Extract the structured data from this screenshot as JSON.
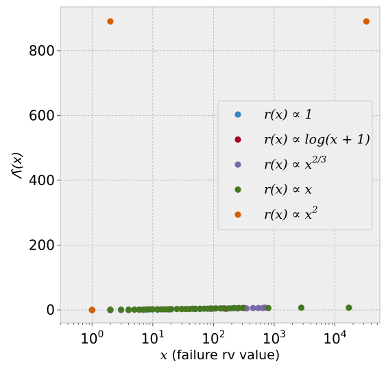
{
  "chart_data": {
    "type": "scatter",
    "title": "",
    "xlabel_math": "x",
    "xlabel_text": " (failure rv value)",
    "ylabel": "Λ̂(x)",
    "x_scale": "log",
    "xlim": [
      0.3,
      55000
    ],
    "ylim": [
      -40,
      935
    ],
    "x_ticks": [
      {
        "value": 1,
        "base": "10",
        "exp": "0"
      },
      {
        "value": 10,
        "base": "10",
        "exp": "1"
      },
      {
        "value": 100,
        "base": "10",
        "exp": "2"
      },
      {
        "value": 1000,
        "base": "10",
        "exp": "3"
      },
      {
        "value": 10000,
        "base": "10",
        "exp": "4"
      }
    ],
    "y_ticks": [
      0,
      200,
      400,
      600,
      800
    ],
    "y_tick_labels": [
      "0",
      "200",
      "400",
      "600",
      "800"
    ],
    "grid": true,
    "background": "#eeeeee",
    "legend_position": "center-right",
    "series": [
      {
        "name": "r(x) ∝ 1",
        "color": "#348abd",
        "points": [
          [
            1,
            0
          ],
          [
            2,
            0
          ],
          [
            3,
            0
          ],
          [
            5,
            1
          ],
          [
            8,
            1
          ],
          [
            12,
            1
          ],
          [
            20,
            2
          ],
          [
            35,
            3
          ],
          [
            60,
            3
          ],
          [
            100,
            4
          ],
          [
            150,
            5
          ],
          [
            200,
            5
          ]
        ]
      },
      {
        "name": "r(x) ∝ log(x + 1)",
        "color": "#a60628",
        "points": [
          [
            1,
            0
          ],
          [
            2,
            0
          ],
          [
            4,
            0
          ],
          [
            7,
            1
          ],
          [
            12,
            2
          ],
          [
            18,
            2
          ],
          [
            30,
            3
          ],
          [
            50,
            3
          ],
          [
            90,
            4
          ],
          [
            160,
            4
          ],
          [
            250,
            5
          ],
          [
            320,
            6
          ]
        ]
      },
      {
        "name": "r(x) ∝ x^{2/3}",
        "color": "#7a68a6",
        "points": [
          [
            1,
            0
          ],
          [
            3,
            0
          ],
          [
            6,
            1
          ],
          [
            12,
            2
          ],
          [
            25,
            3
          ],
          [
            50,
            3
          ],
          [
            100,
            4
          ],
          [
            140,
            5
          ],
          [
            250,
            5
          ],
          [
            350,
            5
          ],
          [
            450,
            6
          ],
          [
            550,
            6
          ],
          [
            650,
            6
          ],
          [
            700,
            7
          ]
        ]
      },
      {
        "name": "r(x) ∝ x",
        "color": "#467821",
        "points": [
          [
            1,
            0
          ],
          [
            2,
            1
          ],
          [
            3,
            1
          ],
          [
            4,
            1
          ],
          [
            5,
            1
          ],
          [
            6,
            1
          ],
          [
            7,
            1
          ],
          [
            8,
            2
          ],
          [
            9,
            2
          ],
          [
            10,
            2
          ],
          [
            12,
            2
          ],
          [
            14,
            2
          ],
          [
            16,
            2
          ],
          [
            18,
            2
          ],
          [
            20,
            3
          ],
          [
            25,
            3
          ],
          [
            30,
            3
          ],
          [
            35,
            3
          ],
          [
            40,
            3
          ],
          [
            45,
            4
          ],
          [
            50,
            4
          ],
          [
            60,
            4
          ],
          [
            70,
            4
          ],
          [
            80,
            4
          ],
          [
            90,
            5
          ],
          [
            110,
            5
          ],
          [
            130,
            5
          ],
          [
            150,
            5
          ],
          [
            180,
            5
          ],
          [
            220,
            6
          ],
          [
            260,
            6
          ],
          [
            300,
            6
          ],
          [
            800,
            6
          ],
          [
            2800,
            7
          ],
          [
            17000,
            7
          ]
        ]
      },
      {
        "name": "r(x) ∝ x^2",
        "color": "#d55e00",
        "points": [
          [
            1,
            0
          ],
          [
            2,
            890
          ],
          [
            33000,
            890
          ]
        ]
      }
    ]
  }
}
